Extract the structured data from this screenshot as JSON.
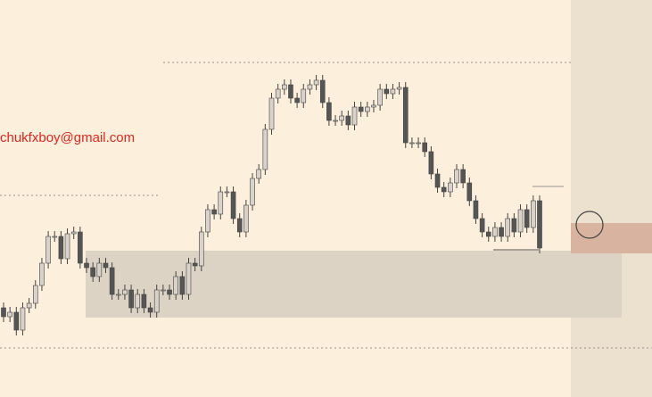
{
  "chart_data": {
    "type": "candlestick",
    "watermark": "chukfxboy@gmail.com",
    "ylim": [
      0,
      445
    ],
    "colors": {
      "up": "#d8d2ca",
      "down": "#555555",
      "wick": "#444444"
    },
    "open": [
      100,
      90,
      95,
      75,
      100,
      105,
      125,
      150,
      180,
      180,
      155,
      183,
      185,
      150,
      145,
      135,
      150,
      145,
      115,
      115,
      120,
      100,
      115,
      100,
      95,
      120,
      120,
      115,
      135,
      115,
      150,
      147,
      185,
      210,
      205,
      230,
      230,
      200,
      185,
      215,
      245,
      255,
      300,
      335,
      345,
      350,
      335,
      330,
      345,
      350,
      355,
      330,
      310,
      310,
      315,
      305,
      325,
      320,
      325,
      327,
      345,
      340,
      345,
      347,
      285,
      285,
      285,
      275,
      250,
      235,
      230,
      240,
      255,
      240,
      220,
      200,
      185,
      180,
      190,
      180,
      200,
      185,
      210,
      190,
      220
    ],
    "high": [
      106,
      101,
      101,
      106,
      111,
      131,
      156,
      186,
      186,
      186,
      189,
      191,
      191,
      156,
      151,
      156,
      156,
      151,
      121,
      126,
      126,
      121,
      121,
      106,
      126,
      126,
      126,
      141,
      141,
      156,
      156,
      191,
      216,
      216,
      236,
      236,
      236,
      206,
      221,
      251,
      261,
      306,
      341,
      351,
      356,
      356,
      341,
      351,
      356,
      361,
      361,
      336,
      316,
      321,
      321,
      331,
      331,
      331,
      333,
      351,
      351,
      351,
      353,
      353,
      291,
      291,
      291,
      281,
      256,
      241,
      246,
      261,
      261,
      246,
      226,
      206,
      191,
      196,
      196,
      206,
      206,
      216,
      216,
      226,
      226
    ],
    "low": [
      84,
      84,
      69,
      69,
      94,
      99,
      119,
      144,
      174,
      149,
      149,
      177,
      144,
      139,
      129,
      129,
      139,
      109,
      109,
      109,
      94,
      94,
      94,
      89,
      89,
      114,
      109,
      109,
      109,
      109,
      141,
      141,
      179,
      199,
      199,
      224,
      194,
      179,
      179,
      209,
      239,
      249,
      294,
      329,
      339,
      329,
      324,
      324,
      339,
      344,
      324,
      304,
      304,
      304,
      299,
      299,
      314,
      314,
      319,
      321,
      334,
      334,
      339,
      279,
      279,
      279,
      269,
      244,
      229,
      224,
      224,
      234,
      234,
      214,
      194,
      179,
      174,
      174,
      174,
      174,
      179,
      179,
      184,
      184,
      161
    ],
    "close": [
      90,
      95,
      75,
      100,
      105,
      125,
      150,
      180,
      180,
      155,
      183,
      185,
      150,
      145,
      135,
      150,
      145,
      115,
      115,
      120,
      100,
      115,
      100,
      95,
      120,
      120,
      115,
      135,
      115,
      150,
      147,
      185,
      210,
      205,
      230,
      230,
      200,
      185,
      215,
      245,
      255,
      300,
      335,
      345,
      350,
      335,
      330,
      345,
      350,
      355,
      330,
      310,
      310,
      315,
      305,
      325,
      320,
      325,
      327,
      345,
      340,
      345,
      347,
      285,
      285,
      285,
      275,
      250,
      235,
      230,
      240,
      255,
      240,
      220,
      200,
      185,
      180,
      190,
      180,
      200,
      185,
      210,
      190,
      220,
      167
    ]
  }
}
